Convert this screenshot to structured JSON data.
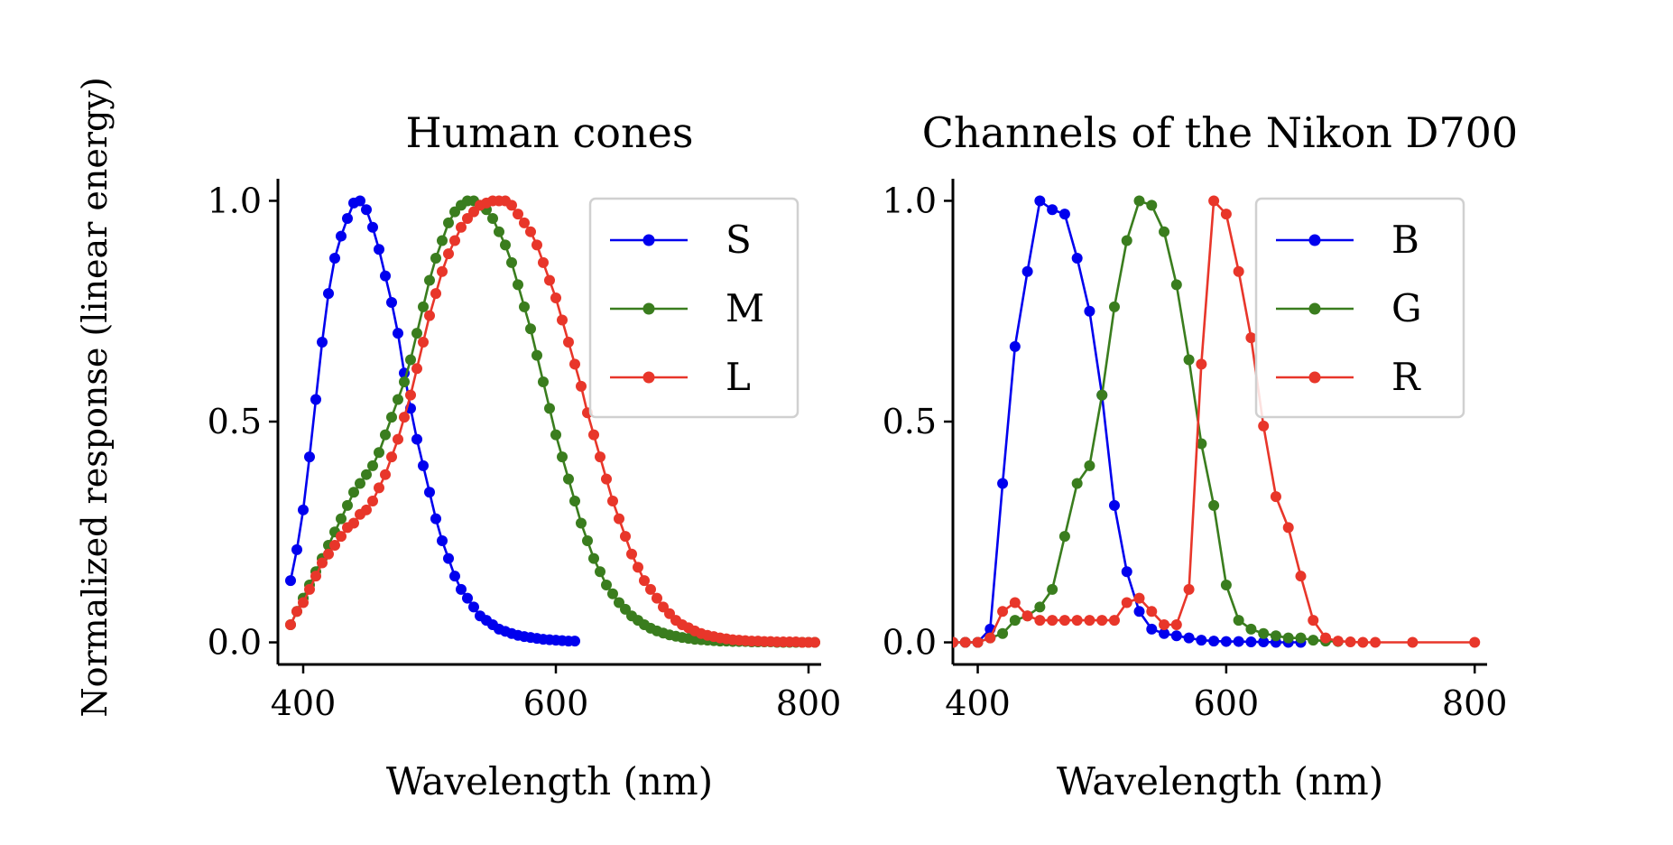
{
  "figure": {
    "ylabel": "Normalized response (linear energy)"
  },
  "chart_data": [
    {
      "type": "line",
      "title": "Human cones",
      "xlabel": "Wavelength (nm)",
      "ylabel": "Normalized response (linear energy)",
      "xlim": [
        380,
        810
      ],
      "ylim": [
        -0.05,
        1.05
      ],
      "xticks": [
        400,
        600,
        800
      ],
      "yticks": [
        0.0,
        0.5,
        1.0
      ],
      "xtick_labels": [
        "400",
        "600",
        "800"
      ],
      "ytick_labels": [
        "0.0",
        "0.5",
        "1.0"
      ],
      "grid": false,
      "legend_position": "top-right",
      "series": [
        {
          "name": "S",
          "color": "#0000ee",
          "x": [
            390,
            395,
            400,
            405,
            410,
            415,
            420,
            425,
            430,
            435,
            440,
            445,
            450,
            455,
            460,
            465,
            470,
            475,
            480,
            485,
            490,
            495,
            500,
            505,
            510,
            515,
            520,
            525,
            530,
            535,
            540,
            545,
            550,
            555,
            560,
            565,
            570,
            575,
            580,
            585,
            590,
            595,
            600,
            605,
            610,
            615
          ],
          "y": [
            0.14,
            0.21,
            0.3,
            0.42,
            0.55,
            0.68,
            0.79,
            0.87,
            0.92,
            0.96,
            0.995,
            1.0,
            0.98,
            0.94,
            0.89,
            0.83,
            0.77,
            0.7,
            0.61,
            0.53,
            0.46,
            0.4,
            0.34,
            0.28,
            0.23,
            0.19,
            0.15,
            0.12,
            0.1,
            0.08,
            0.06,
            0.05,
            0.04,
            0.03,
            0.025,
            0.02,
            0.016,
            0.013,
            0.011,
            0.009,
            0.007,
            0.006,
            0.005,
            0.004,
            0.003,
            0.003
          ]
        },
        {
          "name": "M",
          "color": "#3a7d1e",
          "x": [
            390,
            395,
            400,
            405,
            410,
            415,
            420,
            425,
            430,
            435,
            440,
            445,
            450,
            455,
            460,
            465,
            470,
            475,
            480,
            485,
            490,
            495,
            500,
            505,
            510,
            515,
            520,
            525,
            530,
            535,
            540,
            545,
            550,
            555,
            560,
            565,
            570,
            575,
            580,
            585,
            590,
            595,
            600,
            605,
            610,
            615,
            620,
            625,
            630,
            635,
            640,
            645,
            650,
            655,
            660,
            665,
            670,
            675,
            680,
            685,
            690,
            695,
            700,
            705,
            710,
            715,
            720,
            725,
            730,
            735,
            740,
            745,
            750,
            755,
            760,
            765,
            770,
            775,
            780,
            785,
            790,
            795,
            800,
            805
          ],
          "y": [
            0.04,
            0.07,
            0.1,
            0.13,
            0.16,
            0.19,
            0.22,
            0.25,
            0.28,
            0.31,
            0.34,
            0.36,
            0.38,
            0.4,
            0.43,
            0.47,
            0.51,
            0.55,
            0.59,
            0.64,
            0.7,
            0.76,
            0.82,
            0.87,
            0.91,
            0.95,
            0.975,
            0.99,
            1.0,
            1.0,
            0.99,
            0.98,
            0.96,
            0.93,
            0.9,
            0.86,
            0.81,
            0.76,
            0.71,
            0.65,
            0.59,
            0.53,
            0.47,
            0.42,
            0.37,
            0.32,
            0.27,
            0.23,
            0.19,
            0.16,
            0.13,
            0.11,
            0.09,
            0.075,
            0.06,
            0.05,
            0.04,
            0.032,
            0.026,
            0.021,
            0.017,
            0.014,
            0.011,
            0.009,
            0.007,
            0.006,
            0.005,
            0.004,
            0.003,
            0.003,
            0.002,
            0.002,
            0.002,
            0.001,
            0.001,
            0.001,
            0.001,
            0.0,
            0.0,
            0.0,
            0.0,
            0.0,
            0.0,
            0.0
          ]
        },
        {
          "name": "L",
          "color": "#e8362a",
          "x": [
            390,
            395,
            400,
            405,
            410,
            415,
            420,
            425,
            430,
            435,
            440,
            445,
            450,
            455,
            460,
            465,
            470,
            475,
            480,
            485,
            490,
            495,
            500,
            505,
            510,
            515,
            520,
            525,
            530,
            535,
            540,
            545,
            550,
            555,
            560,
            565,
            570,
            575,
            580,
            585,
            590,
            595,
            600,
            605,
            610,
            615,
            620,
            625,
            630,
            635,
            640,
            645,
            650,
            655,
            660,
            665,
            670,
            675,
            680,
            685,
            690,
            695,
            700,
            705,
            710,
            715,
            720,
            725,
            730,
            735,
            740,
            745,
            750,
            755,
            760,
            765,
            770,
            775,
            780,
            785,
            790,
            795,
            800,
            805
          ],
          "y": [
            0.04,
            0.07,
            0.09,
            0.12,
            0.15,
            0.18,
            0.2,
            0.22,
            0.24,
            0.26,
            0.27,
            0.29,
            0.3,
            0.32,
            0.35,
            0.38,
            0.42,
            0.46,
            0.51,
            0.56,
            0.62,
            0.68,
            0.74,
            0.79,
            0.84,
            0.88,
            0.91,
            0.94,
            0.96,
            0.975,
            0.99,
            0.995,
            1.0,
            1.0,
            1.0,
            0.99,
            0.97,
            0.95,
            0.93,
            0.9,
            0.86,
            0.82,
            0.78,
            0.73,
            0.68,
            0.63,
            0.58,
            0.52,
            0.47,
            0.42,
            0.37,
            0.32,
            0.28,
            0.24,
            0.2,
            0.17,
            0.14,
            0.12,
            0.1,
            0.08,
            0.065,
            0.05,
            0.04,
            0.033,
            0.026,
            0.02,
            0.016,
            0.013,
            0.01,
            0.008,
            0.006,
            0.005,
            0.004,
            0.003,
            0.003,
            0.002,
            0.002,
            0.001,
            0.001,
            0.001,
            0.001,
            0.0,
            0.0,
            0.0
          ]
        }
      ]
    },
    {
      "type": "line",
      "title": "Channels of the Nikon D700",
      "xlabel": "Wavelength (nm)",
      "xlim": [
        380,
        810
      ],
      "ylim": [
        -0.05,
        1.05
      ],
      "xticks": [
        400,
        600,
        800
      ],
      "yticks": [
        0.0,
        0.5,
        1.0
      ],
      "xtick_labels": [
        "400",
        "600",
        "800"
      ],
      "ytick_labels": [
        "0.0",
        "0.5",
        "1.0"
      ],
      "grid": false,
      "legend_position": "top-right",
      "series": [
        {
          "name": "B",
          "color": "#0000ee",
          "x": [
            380,
            390,
            400,
            410,
            420,
            430,
            440,
            450,
            460,
            470,
            480,
            490,
            500,
            510,
            520,
            530,
            540,
            550,
            560,
            570,
            580,
            590,
            600,
            610,
            620,
            630,
            640,
            650,
            660
          ],
          "y": [
            0.0,
            0.0,
            0.0,
            0.03,
            0.36,
            0.67,
            0.84,
            1.0,
            0.98,
            0.97,
            0.87,
            0.75,
            0.56,
            0.31,
            0.16,
            0.07,
            0.03,
            0.02,
            0.015,
            0.01,
            0.005,
            0.003,
            0.002,
            0.002,
            0.001,
            0.001,
            0.0,
            0.0,
            0.0
          ]
        },
        {
          "name": "G",
          "color": "#3a7d1e",
          "x": [
            380,
            390,
            400,
            410,
            420,
            430,
            440,
            450,
            460,
            470,
            480,
            490,
            500,
            510,
            520,
            530,
            540,
            550,
            560,
            570,
            580,
            590,
            600,
            610,
            620,
            630,
            640,
            650,
            660,
            670,
            680,
            690
          ],
          "y": [
            0.0,
            0.0,
            0.0,
            0.01,
            0.02,
            0.05,
            0.06,
            0.08,
            0.12,
            0.24,
            0.36,
            0.4,
            0.56,
            0.76,
            0.91,
            1.0,
            0.99,
            0.93,
            0.81,
            0.64,
            0.45,
            0.31,
            0.13,
            0.05,
            0.03,
            0.02,
            0.015,
            0.01,
            0.01,
            0.005,
            0.003,
            0.002
          ]
        },
        {
          "name": "R",
          "color": "#e8362a",
          "x": [
            380,
            390,
            400,
            410,
            420,
            430,
            440,
            450,
            460,
            470,
            480,
            490,
            500,
            510,
            520,
            530,
            540,
            550,
            560,
            570,
            580,
            590,
            600,
            610,
            620,
            630,
            640,
            650,
            660,
            670,
            680,
            690,
            700,
            710,
            720,
            750,
            800
          ],
          "y": [
            0.0,
            0.0,
            0.0,
            0.01,
            0.07,
            0.09,
            0.06,
            0.05,
            0.05,
            0.05,
            0.05,
            0.05,
            0.05,
            0.05,
            0.09,
            0.1,
            0.07,
            0.04,
            0.04,
            0.12,
            0.63,
            1.0,
            0.97,
            0.84,
            0.69,
            0.49,
            0.33,
            0.26,
            0.15,
            0.05,
            0.01,
            0.003,
            0.001,
            0.0,
            0.0,
            0.0,
            0.0
          ]
        }
      ]
    }
  ]
}
